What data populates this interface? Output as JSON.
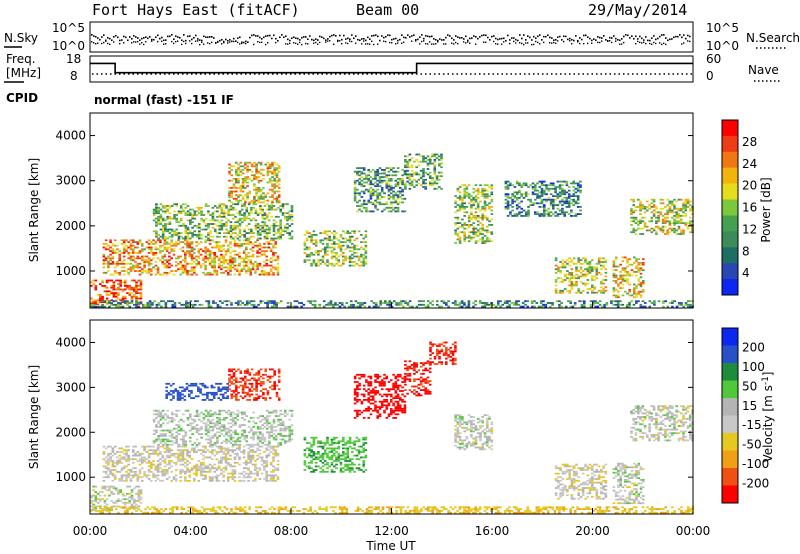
{
  "header": {
    "title": "Fort Hays East (fitACF)",
    "beam": "Beam 00",
    "date": "29/May/2014"
  },
  "noise_panel": {
    "left_label": "N.Sky",
    "right_label": "N.Search",
    "left_ticks": [
      "10^5",
      "10^0"
    ],
    "right_ticks": [
      "10^5",
      "10^0"
    ]
  },
  "freq_panel": {
    "left_label_1": "Freq.",
    "left_label_2": "[MHz]",
    "right_label": "Nave",
    "left_ticks": [
      "18",
      "8"
    ],
    "right_ticks": [
      "60",
      "0"
    ]
  },
  "cpid": {
    "label": "CPID",
    "text": "normal (fast) -151 IF"
  },
  "colors": {
    "power": [
      "#0a28f0",
      "#2846b4",
      "#1e6e64",
      "#3c8c5a",
      "#46a050",
      "#7cc83c",
      "#e6dc1e",
      "#f0b40a",
      "#f07814",
      "#f03c14",
      "#ff0000"
    ],
    "velocity": [
      "#0a28f0",
      "#2850c8",
      "#1e8c3c",
      "#50c83c",
      "#b4b4b4",
      "#c8c8c8",
      "#e6c81e",
      "#f0a014",
      "#f05014",
      "#ff0000"
    ]
  },
  "chart_data": [
    {
      "type": "heatmap",
      "name_key": "power",
      "ylabel": "Slant Range [km]",
      "ylim": [
        180,
        4500
      ],
      "yticks": [
        1000,
        2000,
        3000,
        4000
      ],
      "xlim": [
        0,
        24
      ],
      "colorbar": {
        "label": "Power [dB]",
        "ticks": [
          "4",
          "8",
          "12",
          "16",
          "20",
          "24",
          "28"
        ],
        "range": [
          0,
          30
        ]
      },
      "echo_regions": [
        {
          "t0": 0.0,
          "t1": 2.0,
          "r0": 250,
          "r1": 800,
          "level": 0.85
        },
        {
          "t0": 0.5,
          "t1": 7.5,
          "r0": 900,
          "r1": 1700,
          "level": 0.7
        },
        {
          "t0": 5.5,
          "t1": 7.5,
          "r0": 2500,
          "r1": 3400,
          "level": 0.65
        },
        {
          "t0": 2.5,
          "t1": 8.0,
          "r0": 1700,
          "r1": 2500,
          "level": 0.45
        },
        {
          "t0": 8.5,
          "t1": 11.0,
          "r0": 1100,
          "r1": 1900,
          "level": 0.5
        },
        {
          "t0": 10.5,
          "t1": 12.5,
          "r0": 2300,
          "r1": 3300,
          "level": 0.35
        },
        {
          "t0": 12.5,
          "t1": 14.0,
          "r0": 2800,
          "r1": 3600,
          "level": 0.4
        },
        {
          "t0": 14.5,
          "t1": 16.0,
          "r0": 1600,
          "r1": 2900,
          "level": 0.5
        },
        {
          "t0": 16.5,
          "t1": 19.5,
          "r0": 2200,
          "r1": 3000,
          "level": 0.3
        },
        {
          "t0": 18.5,
          "t1": 20.5,
          "r0": 500,
          "r1": 1300,
          "level": 0.55
        },
        {
          "t0": 20.8,
          "t1": 22.0,
          "r0": 400,
          "r1": 1300,
          "level": 0.65
        },
        {
          "t0": 21.5,
          "t1": 24.0,
          "r0": 1800,
          "r1": 2600,
          "level": 0.55
        },
        {
          "t0": 0.0,
          "t1": 24.0,
          "r0": 190,
          "r1": 330,
          "level": 0.3
        }
      ]
    },
    {
      "type": "heatmap",
      "name_key": "velocity",
      "ylabel": "Slant Range [km]",
      "ylim": [
        180,
        4500
      ],
      "yticks": [
        1000,
        2000,
        3000,
        4000
      ],
      "xlim": [
        0,
        24
      ],
      "xlabel": "Time UT",
      "xticks": [
        "00:00",
        "04:00",
        "08:00",
        "12:00",
        "16:00",
        "20:00",
        "00:00"
      ],
      "colorbar": {
        "label": "Velocity [m s^-1]",
        "ticks": [
          "200",
          "100",
          "50",
          "15",
          "-15",
          "-50",
          "-100",
          "-200"
        ],
        "range": [
          -250,
          250
        ]
      },
      "echo_regions": [
        {
          "t0": 0.0,
          "t1": 2.0,
          "r0": 250,
          "r1": 800,
          "v": 0
        },
        {
          "t0": 0.5,
          "t1": 7.5,
          "r0": 900,
          "r1": 1700,
          "v": -5
        },
        {
          "t0": 2.5,
          "t1": 8.0,
          "r0": 1700,
          "r1": 2500,
          "v": 5
        },
        {
          "t0": 3.0,
          "t1": 5.5,
          "r0": 2700,
          "r1": 3100,
          "v": 150
        },
        {
          "t0": 5.5,
          "t1": 7.5,
          "r0": 2700,
          "r1": 3400,
          "v": -200
        },
        {
          "t0": 8.5,
          "t1": 11.0,
          "r0": 1100,
          "r1": 1900,
          "v": 40
        },
        {
          "t0": 10.5,
          "t1": 12.5,
          "r0": 2300,
          "r1": 3300,
          "v": -220
        },
        {
          "t0": 12.5,
          "t1": 13.5,
          "r0": 2800,
          "r1": 3600,
          "v": -210
        },
        {
          "t0": 13.5,
          "t1": 14.5,
          "r0": 3500,
          "r1": 4000,
          "v": -200
        },
        {
          "t0": 14.5,
          "t1": 16.0,
          "r0": 1600,
          "r1": 2400,
          "v": 0
        },
        {
          "t0": 18.5,
          "t1": 20.5,
          "r0": 500,
          "r1": 1300,
          "v": -5
        },
        {
          "t0": 20.8,
          "t1": 22.0,
          "r0": 400,
          "r1": 1300,
          "v": 0
        },
        {
          "t0": 21.5,
          "t1": 24.0,
          "r0": 1800,
          "r1": 2600,
          "v": 0
        },
        {
          "t0": 0.0,
          "t1": 24.0,
          "r0": 190,
          "r1": 330,
          "v": -40
        }
      ]
    }
  ]
}
